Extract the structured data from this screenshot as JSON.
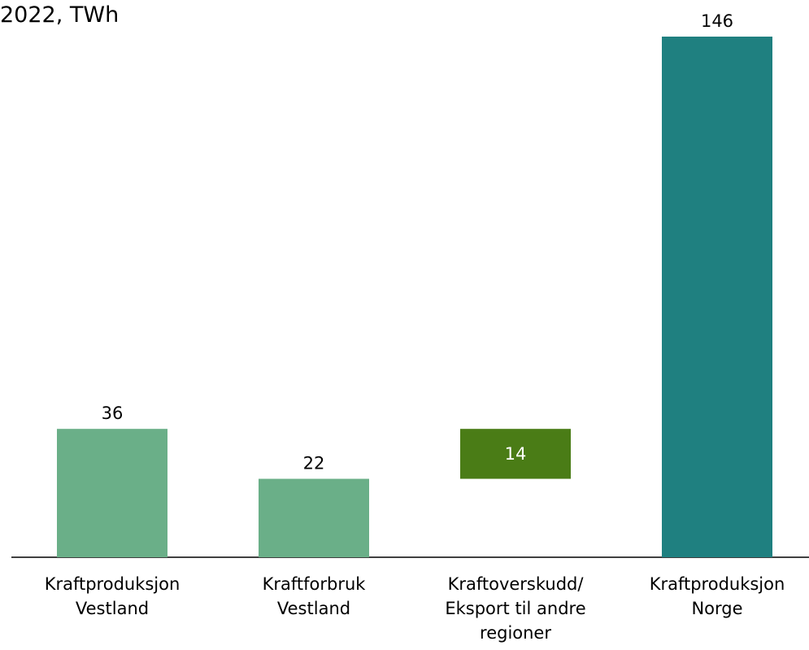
{
  "chart_data": {
    "type": "waterfall",
    "title": "2022, TWh",
    "categories": [
      [
        "Kraftproduksjon",
        "Vestland"
      ],
      [
        "Kraftforbruk",
        "Vestland"
      ],
      [
        "Kraftoverskudd/",
        "Eksport til andre",
        "regioner"
      ],
      [
        "Kraftproduksjon",
        "Norge"
      ]
    ],
    "values": [
      36,
      22,
      14,
      146
    ],
    "colors": [
      "#6aaf88",
      "#6aaf88",
      "#4a7c16",
      "#1f8080"
    ],
    "ylim": [
      0,
      146
    ]
  }
}
